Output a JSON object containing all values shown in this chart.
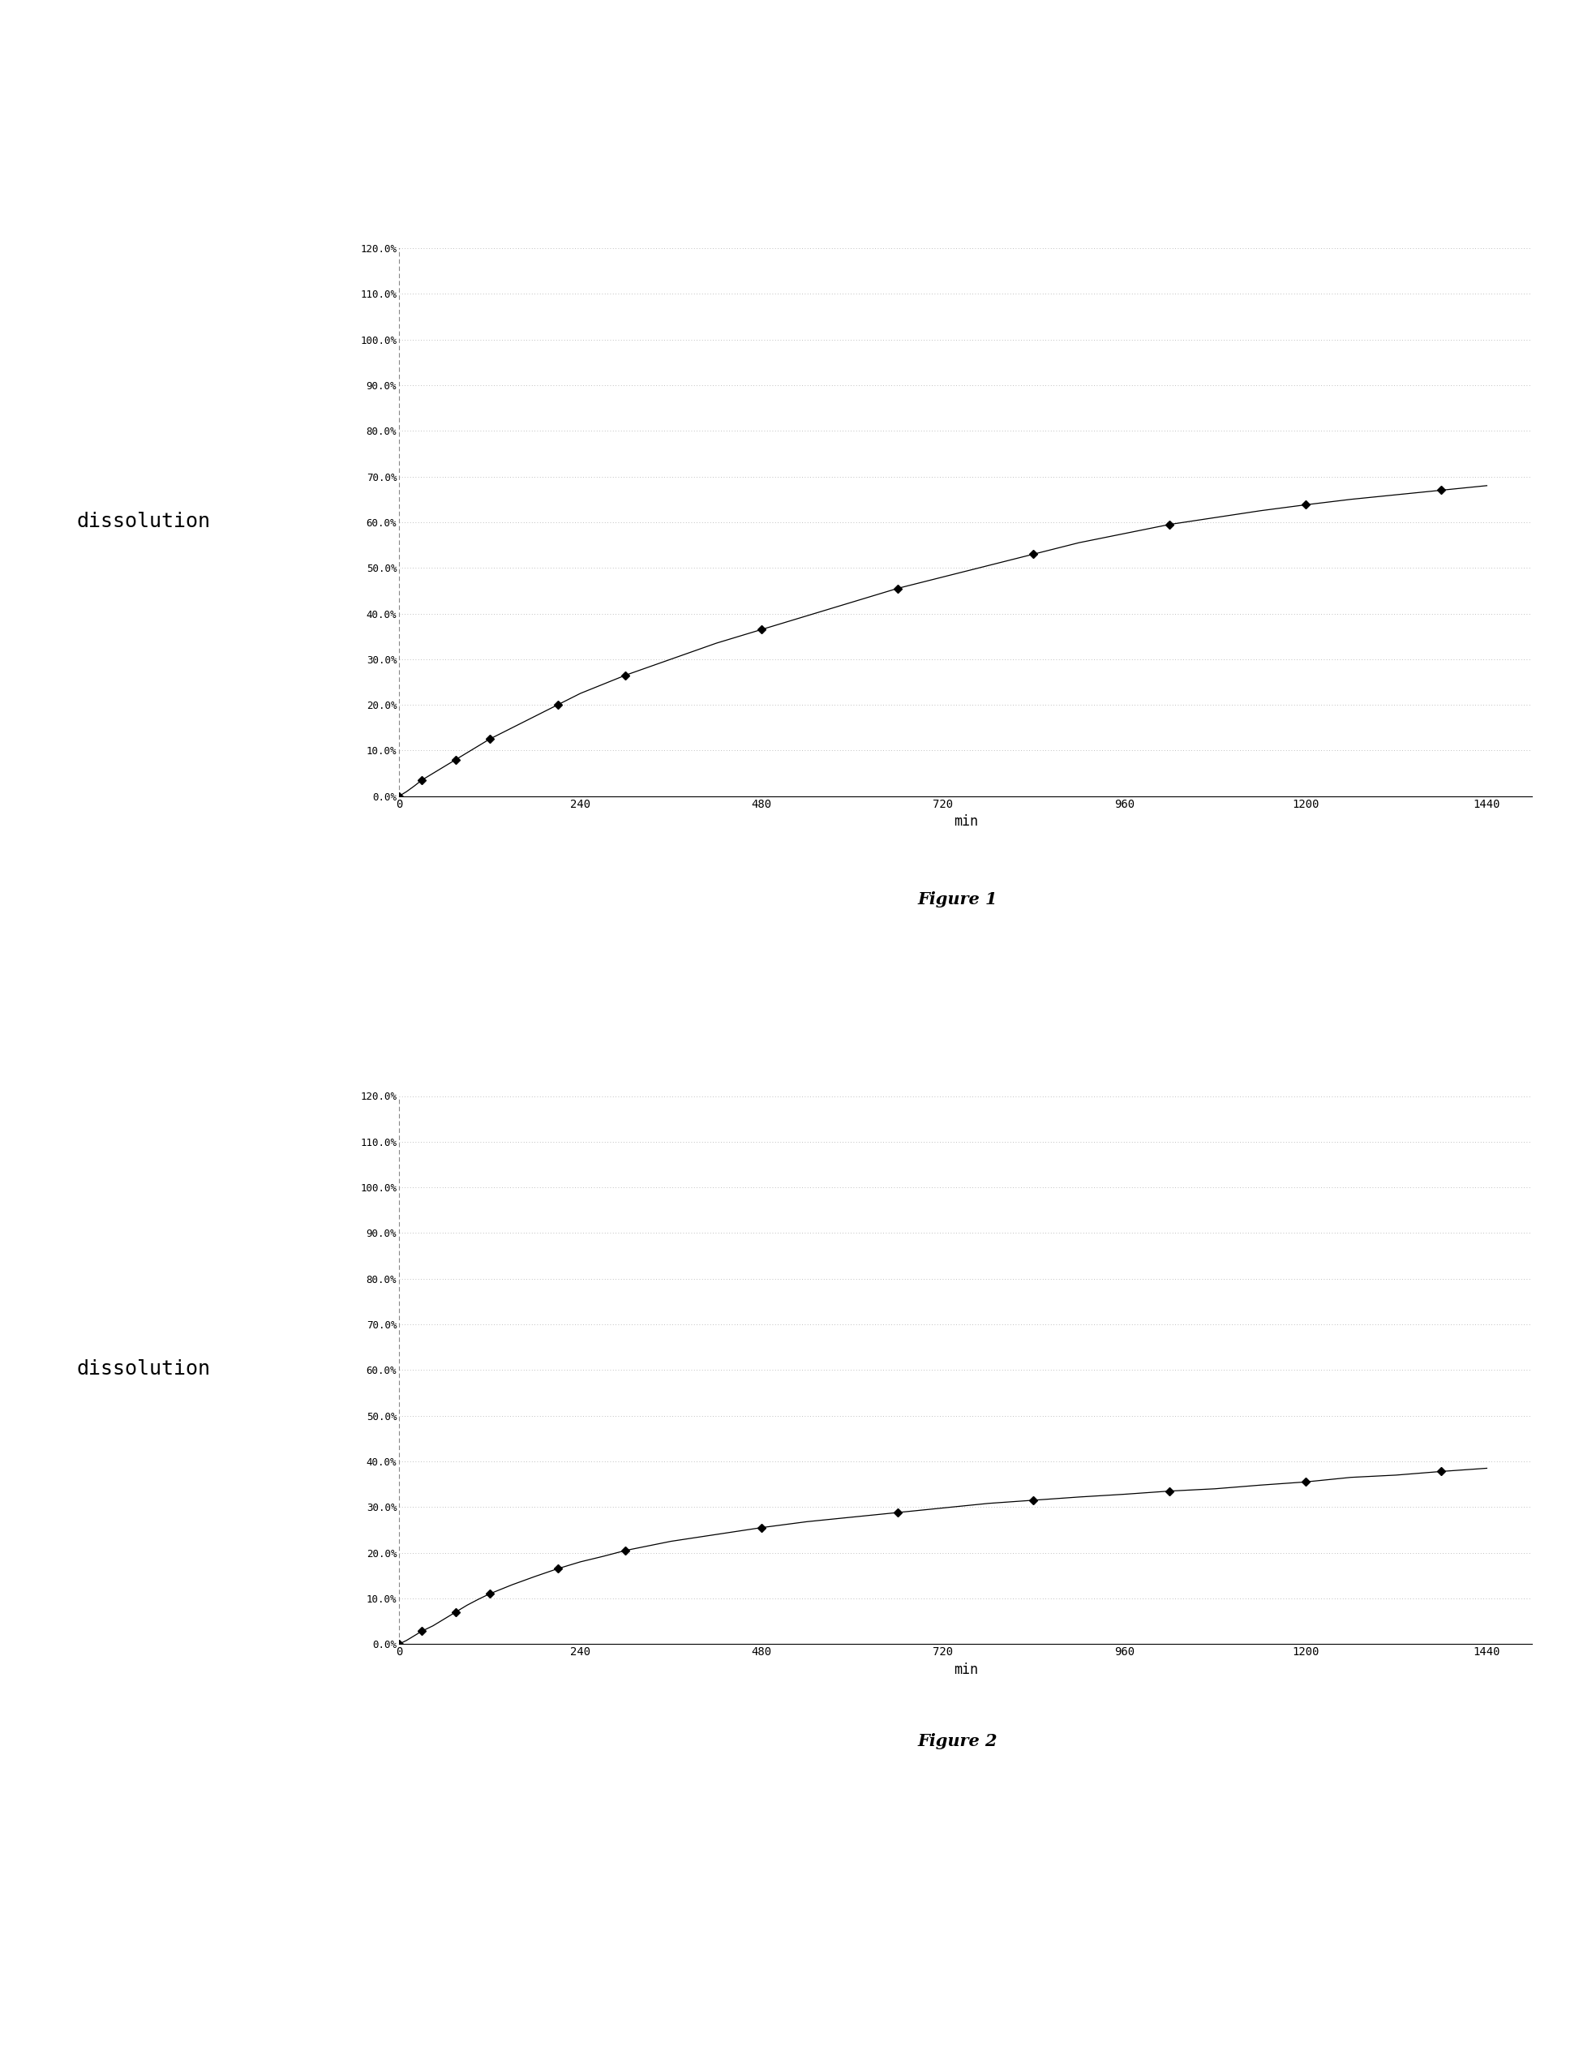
{
  "fig1_x": [
    0,
    10,
    20,
    30,
    45,
    60,
    75,
    90,
    105,
    120,
    150,
    180,
    210,
    240,
    270,
    300,
    360,
    420,
    480,
    540,
    600,
    660,
    720,
    780,
    840,
    900,
    960,
    1020,
    1080,
    1140,
    1200,
    1260,
    1320,
    1380,
    1440
  ],
  "fig1_y": [
    0.0,
    1.0,
    2.2,
    3.5,
    5.0,
    6.5,
    8.0,
    9.5,
    11.0,
    12.5,
    15.0,
    17.5,
    20.0,
    22.5,
    24.5,
    26.5,
    30.0,
    33.5,
    36.5,
    39.5,
    42.5,
    45.5,
    48.0,
    50.5,
    53.0,
    55.5,
    57.5,
    59.5,
    61.0,
    62.5,
    63.8,
    65.0,
    66.0,
    67.0,
    68.0
  ],
  "fig2_x": [
    0,
    10,
    20,
    30,
    45,
    60,
    75,
    90,
    105,
    120,
    150,
    180,
    210,
    240,
    270,
    300,
    360,
    420,
    480,
    540,
    600,
    660,
    720,
    780,
    840,
    900,
    960,
    1020,
    1080,
    1140,
    1200,
    1260,
    1320,
    1380,
    1440
  ],
  "fig2_y": [
    0.0,
    0.8,
    1.8,
    2.8,
    4.0,
    5.5,
    7.0,
    8.5,
    9.8,
    11.0,
    13.0,
    14.8,
    16.5,
    18.0,
    19.2,
    20.5,
    22.5,
    24.0,
    25.5,
    26.8,
    27.8,
    28.8,
    29.8,
    30.8,
    31.5,
    32.2,
    32.8,
    33.5,
    34.0,
    34.8,
    35.5,
    36.5,
    37.0,
    37.8,
    38.5
  ],
  "xlabel": "min",
  "ylabel": "dissolution",
  "yticks": [
    0,
    10,
    20,
    30,
    40,
    50,
    60,
    70,
    80,
    90,
    100,
    110,
    120
  ],
  "xticks": [
    0,
    240,
    480,
    720,
    960,
    1200,
    1440
  ],
  "xlim": [
    0,
    1500
  ],
  "ylim": [
    0,
    120
  ],
  "figure1_label": "Figure 1",
  "figure2_label": "Figure 2",
  "line_color": "#000000",
  "marker": "D",
  "marker_size": 5,
  "background_color": "#ffffff",
  "grid_color": "#aaaaaa",
  "spine_color": "#888888"
}
